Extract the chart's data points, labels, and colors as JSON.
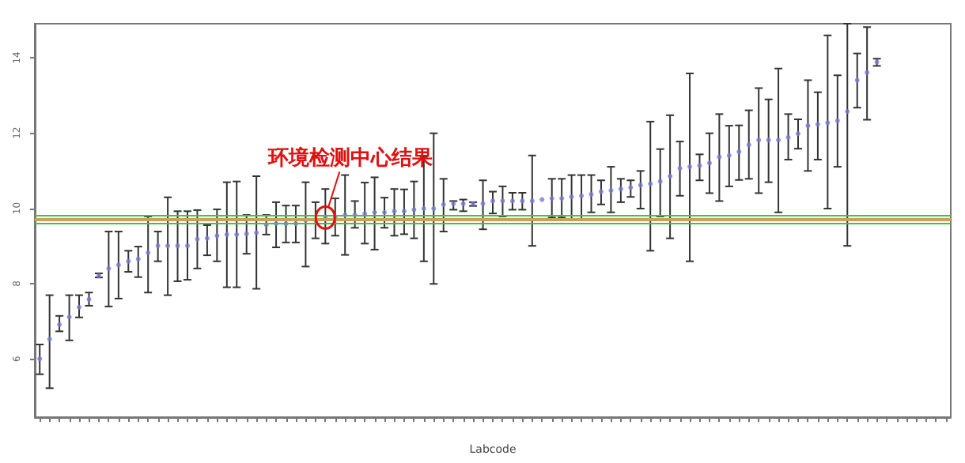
{
  "chart_data": {
    "type": "scatter",
    "xlabel": "Labcode",
    "annotations": [
      "环境检测中心结果"
    ],
    "categories": [
      null,
      null,
      null,
      null,
      null,
      null,
      null,
      null,
      null,
      null,
      null,
      null,
      null,
      null,
      null,
      null,
      null,
      null,
      null,
      null,
      null,
      null,
      null,
      null,
      null,
      null,
      null,
      null,
      null,
      null,
      null,
      null,
      null,
      null,
      null,
      null,
      null,
      null,
      null,
      null,
      null,
      null,
      null,
      null,
      null,
      null,
      null,
      null,
      null,
      null,
      null,
      null,
      null,
      null,
      null,
      null,
      null,
      null,
      null,
      null,
      null,
      null,
      null,
      null,
      null,
      null,
      null,
      null,
      null,
      null,
      null,
      null,
      null,
      null,
      null,
      null,
      null,
      null,
      null,
      null,
      null,
      null,
      null,
      null,
      null,
      null,
      null,
      null,
      null,
      null,
      null,
      null,
      null
    ],
    "series": [
      {
        "color": "#7a7ad6",
        "values": [
          6.0,
          6.52,
          6.91,
          7.11,
          7.37,
          7.58,
          8.21,
          8.4,
          8.49,
          8.59,
          8.65,
          8.82,
          9.0,
          9.0,
          9.0,
          9.0,
          9.18,
          9.2,
          9.27,
          9.3,
          9.3,
          9.32,
          9.35,
          9.56,
          9.59,
          9.59,
          9.59,
          9.68,
          9.68,
          9.75,
          9.75,
          9.82,
          9.82,
          9.85,
          9.89,
          9.89,
          9.92,
          9.92,
          9.96,
          9.99,
          9.99,
          10.1,
          10.12,
          10.12,
          10.12,
          10.12,
          10.19,
          10.19,
          10.19,
          10.19,
          10.19,
          10.23,
          10.26,
          10.26,
          10.3,
          10.33,
          10.37,
          10.44,
          10.47,
          10.51,
          10.55,
          10.61,
          10.65,
          10.71,
          10.85,
          11.06,
          11.1,
          11.13,
          11.2,
          11.36,
          11.4,
          11.5,
          11.68,
          11.81,
          11.81,
          11.81,
          11.88,
          11.98,
          12.19,
          12.23,
          12.27,
          12.32,
          12.57,
          13.4,
          13.6,
          13.88,
          null,
          null,
          null,
          null,
          null,
          null,
          null
        ],
        "errors": [
          [
            5.59,
            6.38
          ],
          [
            5.22,
            7.69
          ],
          [
            6.73,
            7.14
          ],
          [
            6.49,
            7.69
          ],
          [
            7.1,
            7.69
          ],
          [
            7.41,
            7.76
          ],
          [
            8.16,
            8.27
          ],
          [
            7.39,
            9.38
          ],
          [
            7.6,
            9.38
          ],
          [
            8.31,
            8.87
          ],
          [
            8.17,
            8.98
          ],
          [
            7.76,
            9.78
          ],
          [
            8.59,
            9.38
          ],
          [
            7.69,
            10.29
          ],
          [
            8.06,
            9.92
          ],
          [
            8.1,
            9.92
          ],
          [
            8.4,
            9.95
          ],
          [
            8.75,
            9.55
          ],
          [
            8.59,
            9.97
          ],
          [
            7.9,
            10.69
          ],
          [
            7.9,
            10.71
          ],
          [
            8.79,
            9.82
          ],
          [
            7.86,
            10.85
          ],
          [
            9.3,
            9.82
          ],
          [
            8.96,
            10.16
          ],
          [
            9.09,
            10.07
          ],
          [
            9.09,
            10.07
          ],
          [
            8.45,
            10.69
          ],
          [
            9.2,
            10.16
          ],
          [
            9.06,
            10.51
          ],
          [
            9.27,
            10.26
          ],
          [
            8.76,
            10.88
          ],
          [
            9.48,
            10.19
          ],
          [
            9.06,
            10.68
          ],
          [
            8.9,
            10.82
          ],
          [
            9.48,
            10.28
          ],
          [
            9.27,
            10.51
          ],
          [
            9.31,
            10.5
          ],
          [
            9.2,
            10.71
          ],
          [
            8.59,
            11.36
          ],
          [
            7.99,
            11.99
          ],
          [
            9.38,
            10.78
          ],
          [
            9.96,
            10.19
          ],
          [
            9.92,
            10.23
          ],
          [
            10.06,
            10.16
          ],
          [
            9.44,
            10.74
          ],
          [
            9.86,
            10.44
          ],
          [
            9.78,
            10.58
          ],
          [
            9.96,
            10.41
          ],
          [
            9.96,
            10.41
          ],
          [
            9.0,
            11.4
          ],
          null,
          [
            9.75,
            10.78
          ],
          [
            9.75,
            10.78
          ],
          [
            9.68,
            10.88
          ],
          [
            9.68,
            10.88
          ],
          [
            9.89,
            10.88
          ],
          [
            10.1,
            10.74
          ],
          [
            9.89,
            11.1
          ],
          [
            10.16,
            10.78
          ],
          [
            10.3,
            10.74
          ],
          [
            9.99,
            10.99
          ],
          [
            8.87,
            12.3
          ],
          [
            9.78,
            11.57
          ],
          [
            9.2,
            12.47
          ],
          [
            10.33,
            11.77
          ],
          [
            8.59,
            13.58
          ],
          [
            10.74,
            11.43
          ],
          [
            10.4,
            11.99
          ],
          [
            10.19,
            12.5
          ],
          [
            10.58,
            12.19
          ],
          [
            10.75,
            12.2
          ],
          [
            10.78,
            12.6
          ],
          [
            10.4,
            13.19
          ],
          [
            10.69,
            12.89
          ],
          [
            9.89,
            13.71
          ],
          [
            11.29,
            12.5
          ],
          [
            11.58,
            12.36
          ],
          [
            10.99,
            13.4
          ],
          [
            11.29,
            13.08
          ],
          [
            9.99,
            14.59
          ],
          [
            11.1,
            13.53
          ],
          [
            9.0,
            14.9
          ],
          [
            12.67,
            14.11
          ],
          [
            12.35,
            14.81
          ],
          [
            13.78,
            13.97
          ],
          null,
          null,
          null,
          null,
          null,
          null,
          null
        ]
      }
    ],
    "ref_lines": [
      {
        "axis": "y",
        "value": 9.8,
        "color": "#33cc33"
      },
      {
        "axis": "y",
        "value": 9.72,
        "color": "#c8a060"
      },
      {
        "axis": "y",
        "value": 9.67,
        "color": "#c8a060"
      },
      {
        "axis": "y",
        "value": 9.6,
        "color": "#33cc33"
      }
    ],
    "ylim": [
      4.45,
      14.9
    ],
    "yticks": [
      6,
      8,
      10,
      12,
      14
    ],
    "marker": "circle",
    "grid": false
  }
}
